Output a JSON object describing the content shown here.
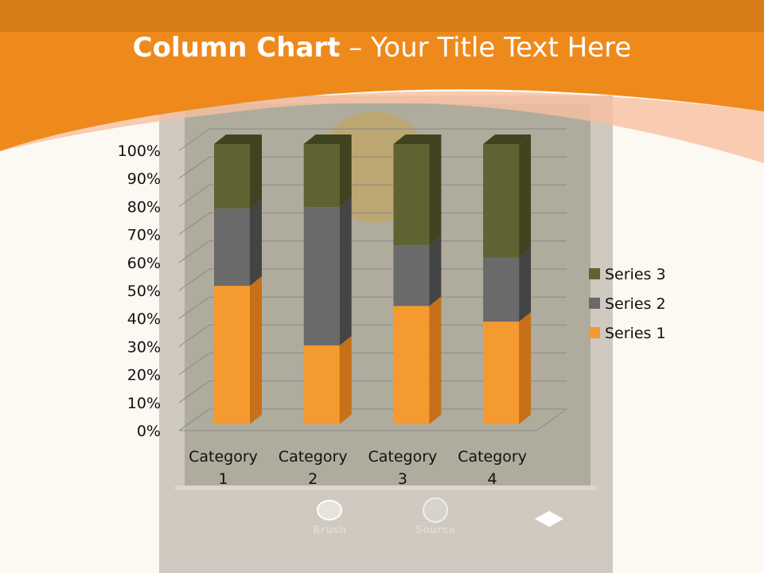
{
  "slide": {
    "title_bold": "Column Chart",
    "title_rest": " – Your Title Text Here",
    "background_labels": [
      "Brush",
      "Source"
    ]
  },
  "colors": {
    "header": "#ee8a1c",
    "series1": "#f59a2e",
    "series2": "#6a6a6a",
    "series3": "#5e6331"
  },
  "chart_data": {
    "type": "bar",
    "subtype": "3d-100%-stacked-column",
    "categories": [
      "Category 1",
      "Category 2",
      "Category 3",
      "Category 4"
    ],
    "series": [
      {
        "name": "Series 1",
        "values": [
          49.4,
          28.1,
          42.2,
          36.6
        ]
      },
      {
        "name": "Series 2",
        "values": [
          27.6,
          49.4,
          21.7,
          22.8
        ]
      },
      {
        "name": "Series 3",
        "values": [
          23.0,
          22.5,
          36.1,
          40.6
        ]
      }
    ],
    "yticks": [
      "0%",
      "10%",
      "20%",
      "30%",
      "40%",
      "50%",
      "60%",
      "70%",
      "80%",
      "90%",
      "100%"
    ],
    "ylim": [
      0,
      100
    ],
    "grid": true,
    "legend": "right"
  }
}
